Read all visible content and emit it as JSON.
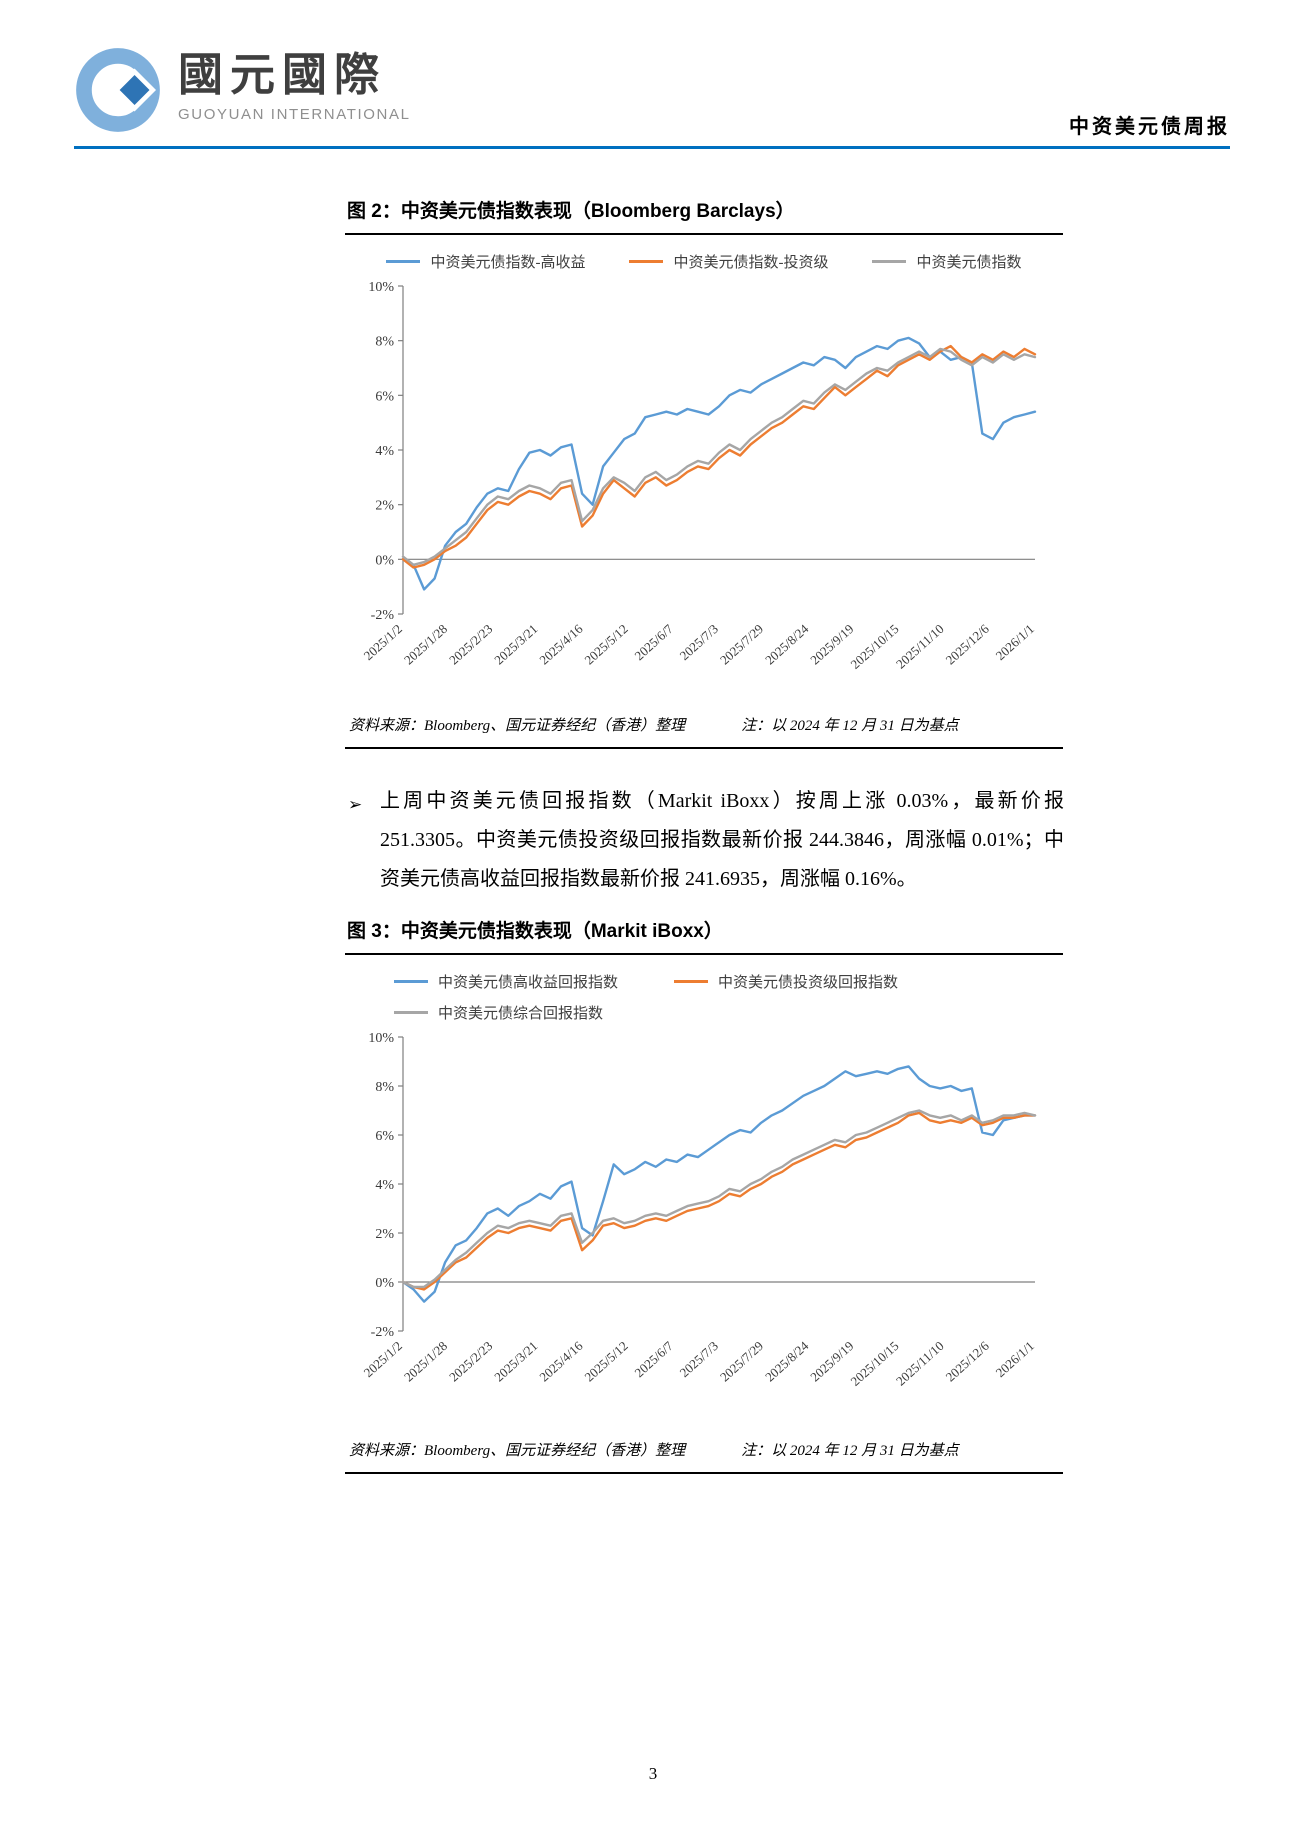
{
  "header": {
    "logo_text_cn": "國元國際",
    "logo_text_en": "GUOYUAN INTERNATIONAL",
    "report_title": "中资美元债周报",
    "brand_color": "#0070C0",
    "logo_color": "#7FB0DC"
  },
  "figure2": {
    "title": "图 2：中资美元债指数表现（Bloomberg Barclays）",
    "source": "资料来源：Bloomberg、国元证券经纪（香港）整理",
    "note": "注：以 2024 年 12 月 31 日为基点"
  },
  "paragraph": {
    "bullet": "➢",
    "text": "上周中资美元债回报指数（Markit iBoxx）按周上涨 0.03%，最新价报 251.3305。中资美元债投资级回报指数最新价报 244.3846，周涨幅 0.01%；中资美元债高收益回报指数最新价报 241.6935，周涨幅 0.16%。"
  },
  "figure3": {
    "title": "图 3：中资美元债指数表现（Markit iBoxx）",
    "source": "资料来源：Bloomberg、国元证券经纪（香港）整理",
    "note": "注：以 2024 年 12 月 31 日为基点"
  },
  "page_number": "3",
  "chart_data": [
    {
      "type": "line",
      "title": "中资美元债指数表现（Bloomberg Barclays）",
      "ylim": [
        -2,
        10
      ],
      "ytick_step": 2,
      "ytick_format": "percent",
      "grid": false,
      "legend_position": "top",
      "x_tick_labels": [
        "2025/1/2",
        "2025/1/28",
        "2025/2/23",
        "2025/3/21",
        "2025/4/16",
        "2025/5/12",
        "2025/6/7",
        "2025/7/3",
        "2025/7/29",
        "2025/8/24",
        "2025/9/19",
        "2025/10/15",
        "2025/11/10",
        "2025/12/6",
        "2026/1/1"
      ],
      "series": [
        {
          "name": "中资美元债指数-高收益",
          "color": "#5B9BD5",
          "values": [
            0.0,
            -0.2,
            -1.1,
            -0.7,
            0.5,
            1.0,
            1.3,
            1.9,
            2.4,
            2.6,
            2.5,
            3.3,
            3.9,
            4.0,
            3.8,
            4.1,
            4.2,
            2.4,
            2.0,
            3.4,
            3.9,
            4.4,
            4.6,
            5.2,
            5.3,
            5.4,
            5.3,
            5.5,
            5.4,
            5.3,
            5.6,
            6.0,
            6.2,
            6.1,
            6.4,
            6.6,
            6.8,
            7.0,
            7.2,
            7.1,
            7.4,
            7.3,
            7.0,
            7.4,
            7.6,
            7.8,
            7.7,
            8.0,
            8.1,
            7.9,
            7.4,
            7.6,
            7.3,
            7.4,
            7.2,
            4.6,
            4.4,
            5.0,
            5.2,
            5.3,
            5.4
          ]
        },
        {
          "name": "中资美元债指数-投资级",
          "color": "#ED7D31",
          "values": [
            0.0,
            -0.3,
            -0.2,
            0.0,
            0.3,
            0.5,
            0.8,
            1.3,
            1.8,
            2.1,
            2.0,
            2.3,
            2.5,
            2.4,
            2.2,
            2.6,
            2.7,
            1.2,
            1.6,
            2.4,
            2.9,
            2.6,
            2.3,
            2.8,
            3.0,
            2.7,
            2.9,
            3.2,
            3.4,
            3.3,
            3.7,
            4.0,
            3.8,
            4.2,
            4.5,
            4.8,
            5.0,
            5.3,
            5.6,
            5.5,
            5.9,
            6.3,
            6.0,
            6.3,
            6.6,
            6.9,
            6.7,
            7.1,
            7.3,
            7.5,
            7.3,
            7.6,
            7.8,
            7.4,
            7.2,
            7.5,
            7.3,
            7.6,
            7.4,
            7.7,
            7.5
          ]
        },
        {
          "name": "中资美元债指数",
          "color": "#A6A6A6",
          "values": [
            0.1,
            -0.2,
            -0.1,
            0.1,
            0.4,
            0.7,
            1.0,
            1.5,
            2.0,
            2.3,
            2.2,
            2.5,
            2.7,
            2.6,
            2.4,
            2.8,
            2.9,
            1.4,
            1.8,
            2.6,
            3.0,
            2.8,
            2.5,
            3.0,
            3.2,
            2.9,
            3.1,
            3.4,
            3.6,
            3.5,
            3.9,
            4.2,
            4.0,
            4.4,
            4.7,
            5.0,
            5.2,
            5.5,
            5.8,
            5.7,
            6.1,
            6.4,
            6.2,
            6.5,
            6.8,
            7.0,
            6.9,
            7.2,
            7.4,
            7.6,
            7.4,
            7.7,
            7.6,
            7.3,
            7.1,
            7.4,
            7.2,
            7.5,
            7.3,
            7.5,
            7.4
          ]
        }
      ]
    },
    {
      "type": "line",
      "title": "中资美元债指数表现（Markit iBoxx）",
      "ylim": [
        -2,
        10
      ],
      "ytick_step": 2,
      "ytick_format": "percent",
      "grid": false,
      "legend_position": "top",
      "x_tick_labels": [
        "2025/1/2",
        "2025/1/28",
        "2025/2/23",
        "2025/3/21",
        "2025/4/16",
        "2025/5/12",
        "2025/6/7",
        "2025/7/3",
        "2025/7/29",
        "2025/8/24",
        "2025/9/19",
        "2025/10/15",
        "2025/11/10",
        "2025/12/6",
        "2026/1/1"
      ],
      "series": [
        {
          "name": "中资美元债高收益回报指数",
          "color": "#5B9BD5",
          "values": [
            0.0,
            -0.3,
            -0.8,
            -0.4,
            0.8,
            1.5,
            1.7,
            2.2,
            2.8,
            3.0,
            2.7,
            3.1,
            3.3,
            3.6,
            3.4,
            3.9,
            4.1,
            2.2,
            1.9,
            3.3,
            4.8,
            4.4,
            4.6,
            4.9,
            4.7,
            5.0,
            4.9,
            5.2,
            5.1,
            5.4,
            5.7,
            6.0,
            6.2,
            6.1,
            6.5,
            6.8,
            7.0,
            7.3,
            7.6,
            7.8,
            8.0,
            8.3,
            8.6,
            8.4,
            8.5,
            8.6,
            8.5,
            8.7,
            8.8,
            8.3,
            8.0,
            7.9,
            8.0,
            7.8,
            7.9,
            6.1,
            6.0,
            6.6,
            6.7,
            6.8,
            6.8
          ]
        },
        {
          "name": "中资美元债投资级回报指数",
          "color": "#ED7D31",
          "values": [
            0.0,
            -0.2,
            -0.3,
            0.0,
            0.4,
            0.8,
            1.0,
            1.4,
            1.8,
            2.1,
            2.0,
            2.2,
            2.3,
            2.2,
            2.1,
            2.5,
            2.6,
            1.3,
            1.7,
            2.3,
            2.4,
            2.2,
            2.3,
            2.5,
            2.6,
            2.5,
            2.7,
            2.9,
            3.0,
            3.1,
            3.3,
            3.6,
            3.5,
            3.8,
            4.0,
            4.3,
            4.5,
            4.8,
            5.0,
            5.2,
            5.4,
            5.6,
            5.5,
            5.8,
            5.9,
            6.1,
            6.3,
            6.5,
            6.8,
            6.9,
            6.6,
            6.5,
            6.6,
            6.5,
            6.7,
            6.4,
            6.5,
            6.7,
            6.7,
            6.8,
            6.8
          ]
        },
        {
          "name": "中资美元债综合回报指数",
          "color": "#A6A6A6",
          "values": [
            0.0,
            -0.2,
            -0.2,
            0.1,
            0.5,
            0.9,
            1.2,
            1.6,
            2.0,
            2.3,
            2.2,
            2.4,
            2.5,
            2.4,
            2.3,
            2.7,
            2.8,
            1.6,
            2.0,
            2.5,
            2.6,
            2.4,
            2.5,
            2.7,
            2.8,
            2.7,
            2.9,
            3.1,
            3.2,
            3.3,
            3.5,
            3.8,
            3.7,
            4.0,
            4.2,
            4.5,
            4.7,
            5.0,
            5.2,
            5.4,
            5.6,
            5.8,
            5.7,
            6.0,
            6.1,
            6.3,
            6.5,
            6.7,
            6.9,
            7.0,
            6.8,
            6.7,
            6.8,
            6.6,
            6.8,
            6.5,
            6.6,
            6.8,
            6.8,
            6.9,
            6.8
          ]
        }
      ]
    }
  ]
}
